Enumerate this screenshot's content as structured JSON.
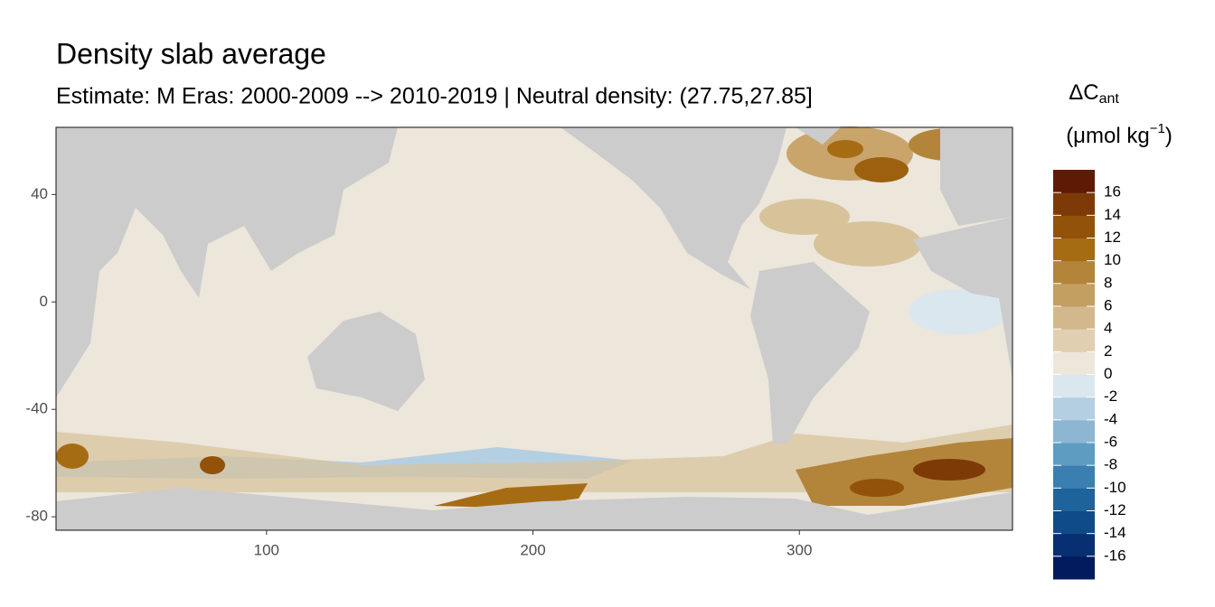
{
  "chart_data": {
    "type": "map",
    "title": "Density slab average",
    "subtitle": "Estimate: M Eras: 2000-2009 --> 2010-2019 | Neutral density: (27.75,27.85]",
    "xlim": [
      21,
      380
    ],
    "xticks": [
      100,
      200,
      300
    ],
    "ylim": [
      -85,
      65
    ],
    "yticks": [
      40,
      0,
      -40,
      -80
    ],
    "legend": {
      "title": "ΔC",
      "title_subscript": "ant",
      "unit": "(μmol kg",
      "unit_exponent": "−1",
      "unit_close": ")",
      "limits": [
        -18,
        18
      ],
      "ticks": [
        -16,
        -14,
        -12,
        -10,
        -8,
        -6,
        -4,
        -2,
        0,
        2,
        4,
        6,
        8,
        10,
        12,
        14,
        16
      ],
      "colors": [
        "#021a5e",
        "#072f72",
        "#0e4b87",
        "#1e639b",
        "#3a7fb0",
        "#5f9cc2",
        "#8db6d2",
        "#b4cfe1",
        "#dbe7ee",
        "#ece6db",
        "#e0cfb0",
        "#d2b88c",
        "#c39f62",
        "#b3853a",
        "#a66c14",
        "#925209",
        "#7d3a07",
        "#5f1a06"
      ]
    }
  }
}
